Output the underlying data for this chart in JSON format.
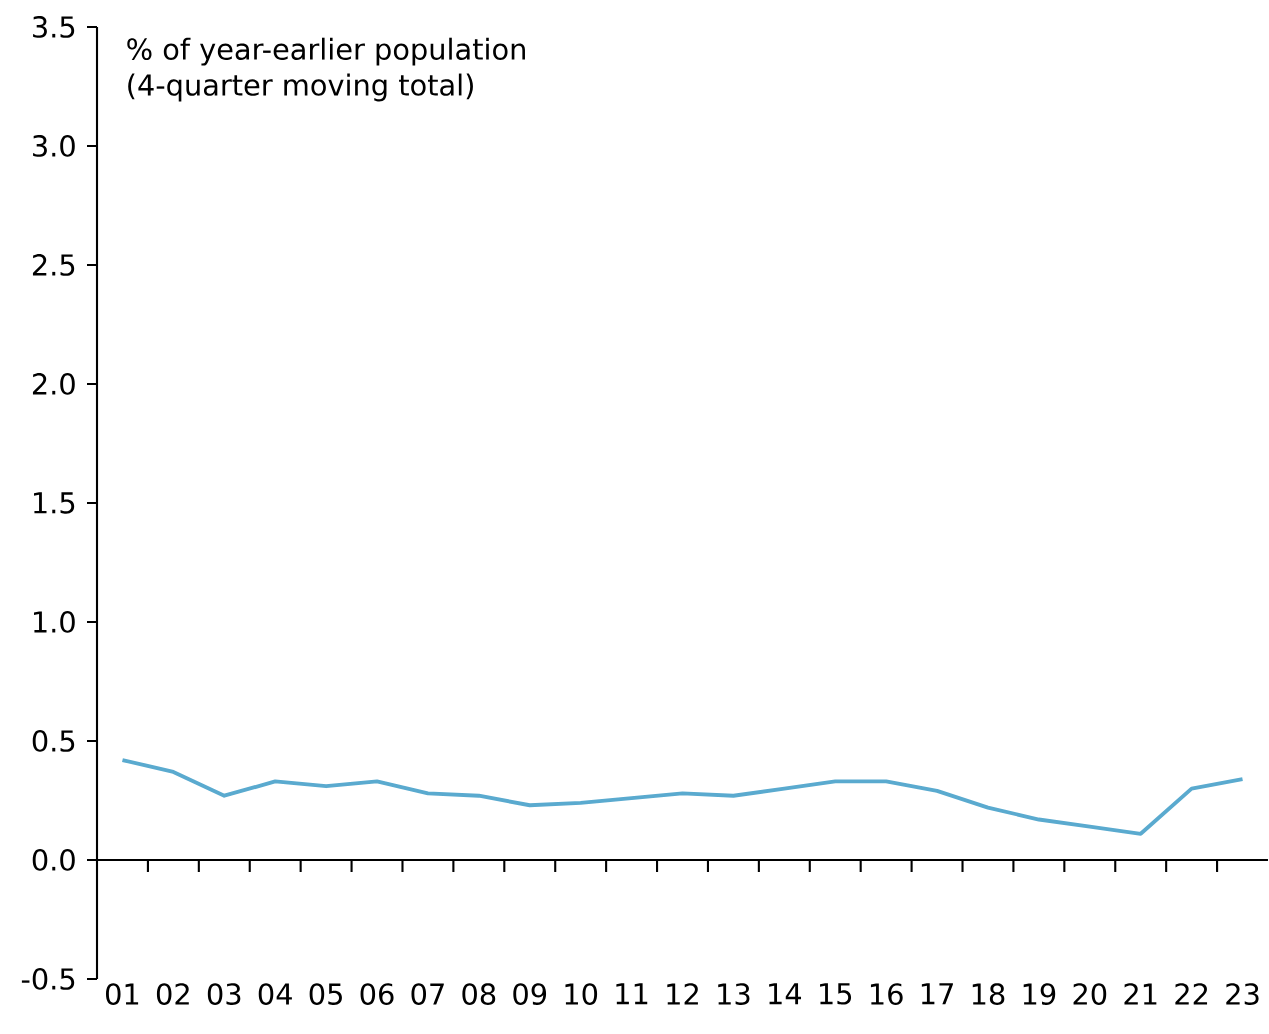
{
  "chart_data": {
    "type": "line",
    "ylabel": "% of year-earlier population",
    "annotations": [
      "(4-quarter moving total)"
    ],
    "categories": [
      "01",
      "02",
      "03",
      "04",
      "05",
      "06",
      "07",
      "08",
      "09",
      "10",
      "11",
      "12",
      "13",
      "14",
      "15",
      "16",
      "17",
      "18",
      "19",
      "20",
      "21",
      "22",
      "23"
    ],
    "values": [
      0.42,
      0.37,
      0.27,
      0.33,
      0.31,
      0.33,
      0.28,
      0.27,
      0.23,
      0.24,
      0.26,
      0.28,
      0.27,
      0.3,
      0.33,
      0.33,
      0.29,
      0.22,
      0.17,
      0.14,
      0.11,
      0.3,
      0.34
    ],
    "color": "#5aaacf",
    "ylim": [
      -0.5,
      3.5
    ],
    "yticks": [
      {
        "value": -0.5,
        "label": "-0.5"
      },
      {
        "value": 0,
        "label": "0.0"
      },
      {
        "value": 0.5,
        "label": "0.5"
      },
      {
        "value": 1,
        "label": "1.0"
      },
      {
        "value": 1.5,
        "label": "1.5"
      },
      {
        "value": 2,
        "label": "2.0"
      },
      {
        "value": 2.5,
        "label": "2.5"
      },
      {
        "value": 3,
        "label": "3.0"
      },
      {
        "value": 3.5,
        "label": "3.5"
      }
    ]
  }
}
